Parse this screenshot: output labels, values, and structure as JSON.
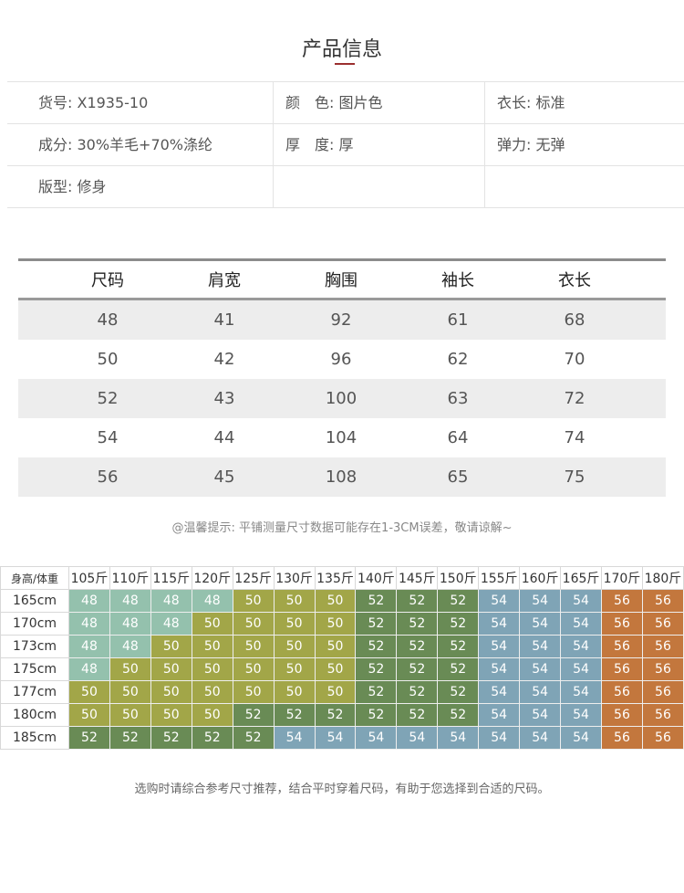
{
  "header": {
    "title": "产品信息"
  },
  "info": {
    "rows": [
      [
        "货号: X1935-10",
        "颜　色: 图片色",
        "衣长: 标准"
      ],
      [
        "成分: 30%羊毛+70%涤纶",
        "厚　度: 厚",
        "弹力: 无弹"
      ],
      [
        "版型: 修身"
      ]
    ]
  },
  "size_table": {
    "columns": [
      "尺码",
      "肩宽",
      "胸围",
      "袖长",
      "衣长"
    ],
    "rows": [
      [
        48,
        41,
        92,
        61,
        68
      ],
      [
        50,
        42,
        96,
        62,
        70
      ],
      [
        52,
        43,
        100,
        63,
        72
      ],
      [
        54,
        44,
        104,
        64,
        74
      ],
      [
        56,
        45,
        108,
        65,
        75
      ]
    ]
  },
  "note": "@温馨提示: 平铺测量尺寸数据可能存在1-3CM误差，敬请谅解~",
  "recommendation": {
    "corner": "身高/体重",
    "weights": [
      "105斤",
      "110斤",
      "115斤",
      "120斤",
      "125斤",
      "130斤",
      "135斤",
      "140斤",
      "145斤",
      "150斤",
      "155斤",
      "160斤",
      "165斤",
      "170斤",
      "180斤"
    ],
    "size_colors": [
      "#94c1ad",
      "#a2a648",
      "#698b55",
      "#7fa4b6",
      "#c3773d"
    ],
    "rows": [
      {
        "height": "165cm",
        "sizes": [
          48,
          48,
          48,
          48,
          50,
          50,
          50,
          52,
          52,
          52,
          54,
          54,
          54,
          56,
          56
        ]
      },
      {
        "height": "170cm",
        "sizes": [
          48,
          48,
          48,
          50,
          50,
          50,
          50,
          52,
          52,
          52,
          54,
          54,
          54,
          56,
          56
        ]
      },
      {
        "height": "173cm",
        "sizes": [
          48,
          48,
          50,
          50,
          50,
          50,
          50,
          52,
          52,
          52,
          54,
          54,
          54,
          56,
          56
        ]
      },
      {
        "height": "175cm",
        "sizes": [
          48,
          50,
          50,
          50,
          50,
          50,
          50,
          52,
          52,
          52,
          54,
          54,
          54,
          56,
          56
        ]
      },
      {
        "height": "177cm",
        "sizes": [
          50,
          50,
          50,
          50,
          50,
          50,
          50,
          52,
          52,
          52,
          54,
          54,
          54,
          56,
          56
        ]
      },
      {
        "height": "180cm",
        "sizes": [
          50,
          50,
          50,
          50,
          52,
          52,
          52,
          52,
          52,
          52,
          54,
          54,
          54,
          56,
          56
        ]
      },
      {
        "height": "185cm",
        "sizes": [
          52,
          52,
          52,
          52,
          52,
          54,
          54,
          54,
          54,
          54,
          54,
          54,
          54,
          56,
          56
        ]
      }
    ]
  },
  "footer": "选购时请综合参考尺寸推荐，结合平时穿着尺码，有助于您选择到合适的尺码。"
}
